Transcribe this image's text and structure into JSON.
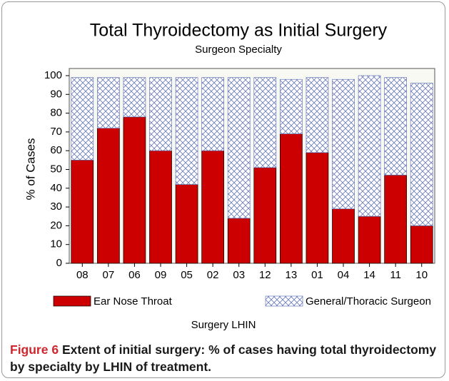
{
  "chart_data": {
    "type": "bar",
    "stacked": true,
    "title": "Total Thyroidectomy as Initial Surgery",
    "subtitle": "Surgeon Specialty",
    "y_label": "% of Cases",
    "x_label": "Surgery LHIN",
    "categories": [
      "08",
      "07",
      "06",
      "09",
      "05",
      "02",
      "03",
      "12",
      "13",
      "01",
      "04",
      "14",
      "11",
      "10"
    ],
    "series": [
      {
        "name": "Ear Nose Throat",
        "color": "#cc0000",
        "values": [
          55,
          72,
          78,
          60,
          42,
          60,
          24,
          51,
          69,
          59,
          29,
          25,
          47,
          20
        ]
      },
      {
        "name": "General/Thoracic Surgeon",
        "color": "#6a7ab8",
        "values": [
          44,
          27,
          21,
          39,
          57,
          39,
          75,
          48,
          29,
          40,
          69,
          75,
          52,
          76
        ]
      }
    ],
    "ylim": [
      0,
      100
    ],
    "yticks": [
      0,
      10,
      20,
      30,
      40,
      50,
      60,
      70,
      80,
      90,
      100
    ]
  },
  "caption": {
    "label": "Figure 6",
    "text": "Extent of initial surgery: % of cases having total thyroidectomy by specialty by LHIN of treatment."
  }
}
